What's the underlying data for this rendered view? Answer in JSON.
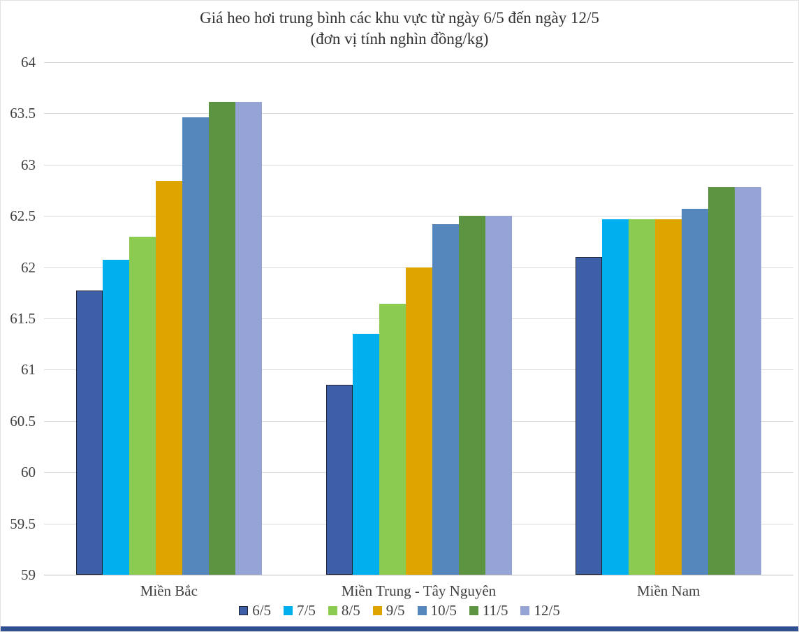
{
  "title": "Giá heo hơi trung bình các khu vực từ ngày 6/5 đến ngày 12/5",
  "subtitle": "(đơn vị tính nghìn đồng/kg)",
  "colors": {
    "gridline": "#d9d9d9",
    "axis_line": "#bfbfbf",
    "text": "#404040",
    "bottom_strip": "#30518f",
    "first_series_outline": "#1f2430"
  },
  "chart_data": {
    "type": "bar",
    "categories": [
      "Miền Bắc",
      "Miền Trung - Tây Nguyên",
      "Miền Nam"
    ],
    "series": [
      {
        "name": "6/5",
        "color": "#3d5fa7",
        "outlined": true,
        "values": [
          61.77,
          60.85,
          62.1
        ]
      },
      {
        "name": "7/5",
        "color": "#00afee",
        "outlined": false,
        "values": [
          62.07,
          61.35,
          62.47
        ]
      },
      {
        "name": "8/5",
        "color": "#8ccb52",
        "outlined": false,
        "values": [
          62.3,
          61.64,
          62.47
        ]
      },
      {
        "name": "9/5",
        "color": "#dea400",
        "outlined": false,
        "values": [
          62.84,
          62.0,
          62.47
        ]
      },
      {
        "name": "10/5",
        "color": "#5587bd",
        "outlined": false,
        "values": [
          63.46,
          62.42,
          62.57
        ]
      },
      {
        "name": "11/5",
        "color": "#5d9442",
        "outlined": false,
        "values": [
          63.61,
          62.5,
          62.78
        ]
      },
      {
        "name": "12/5",
        "color": "#96a3d5",
        "outlined": false,
        "values": [
          63.61,
          62.5,
          62.78
        ]
      }
    ],
    "ylim": [
      59,
      64
    ],
    "ytick_step": 0.5,
    "yticks": [
      "64",
      "63.5",
      "63",
      "62.5",
      "62",
      "61.5",
      "61",
      "60.5",
      "60",
      "59.5",
      "59"
    ],
    "xlabel": "",
    "ylabel": "",
    "grid": true,
    "legend_position": "bottom"
  }
}
